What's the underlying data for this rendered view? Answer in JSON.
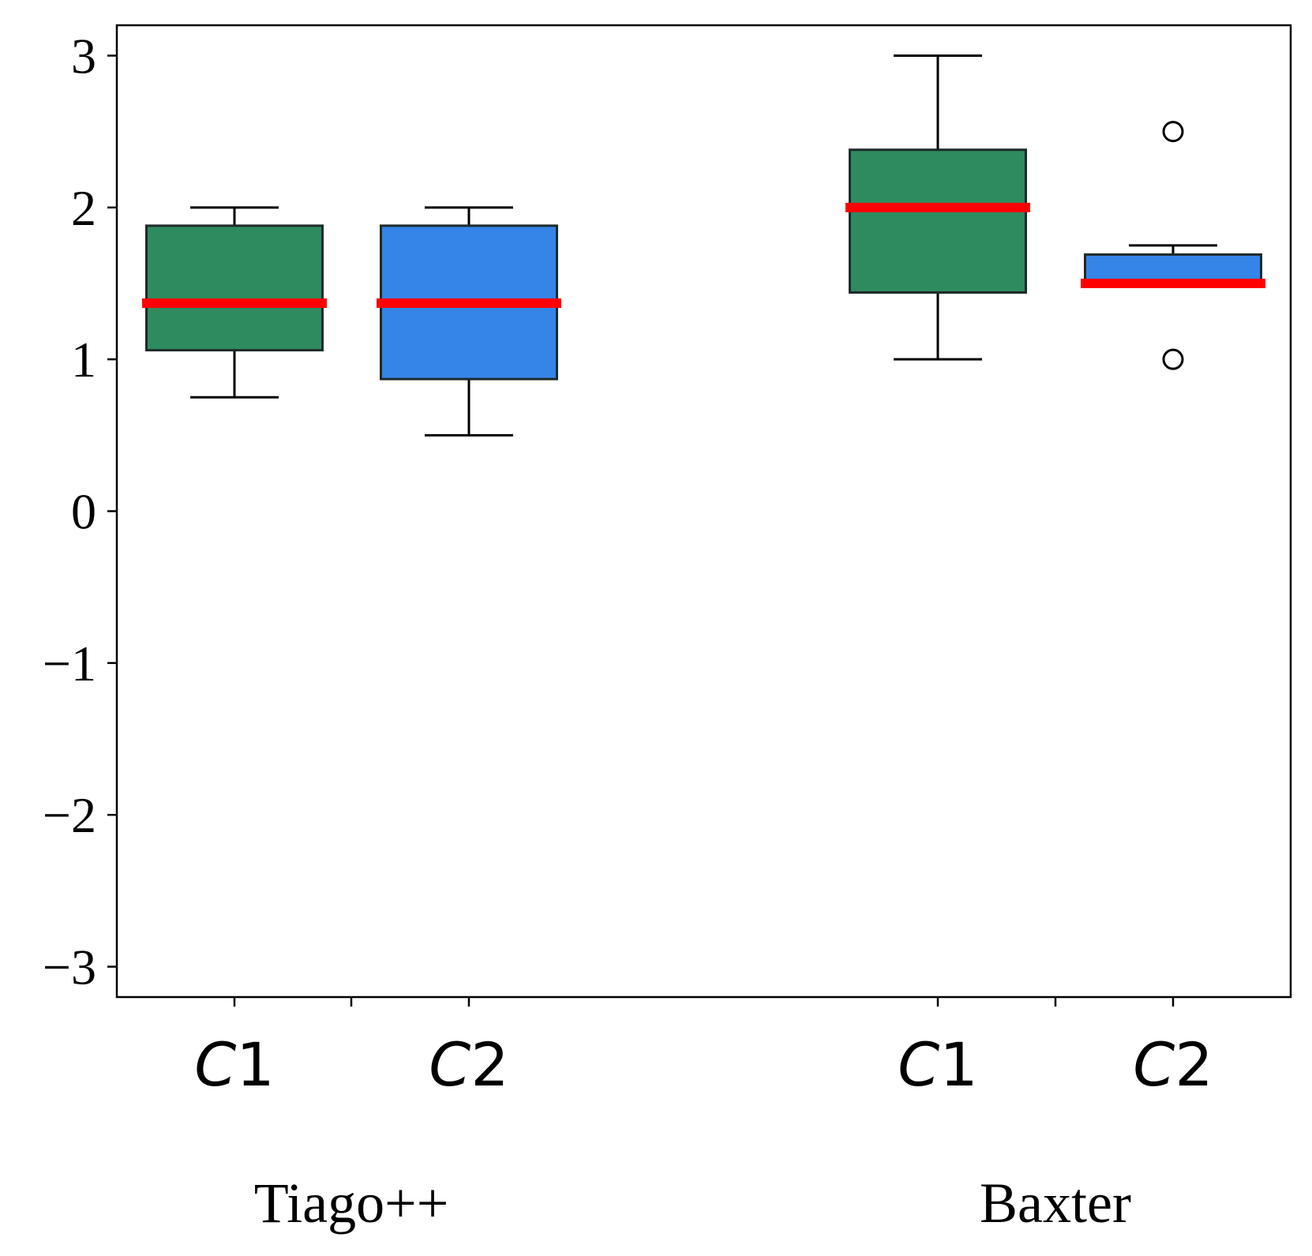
{
  "chart_data": {
    "type": "box",
    "title": "",
    "xlabel": "",
    "ylabel": "",
    "ylim": [
      -3.2,
      3.2
    ],
    "yticks": [
      -3,
      -2,
      -1,
      0,
      1,
      2,
      3
    ],
    "ytick_labels": [
      "−3",
      "−2",
      "−1",
      "0",
      "1",
      "2",
      "3"
    ],
    "grid": false,
    "legend": null,
    "colors": {
      "C1": "#2e8b5f",
      "C2": "#3584e8",
      "median": "#ff0000"
    },
    "groups": [
      {
        "name": "Tiago++",
        "boxes": [
          {
            "category": "C1",
            "letter": "C",
            "number": "1",
            "whisker_low": 0.75,
            "q1": 1.06,
            "median": 1.37,
            "q3": 1.88,
            "whisker_high": 2.0,
            "outliers": []
          },
          {
            "category": "C2",
            "letter": "C",
            "number": "2",
            "whisker_low": 0.5,
            "q1": 0.87,
            "median": 1.37,
            "q3": 1.88,
            "whisker_high": 2.0,
            "outliers": []
          }
        ]
      },
      {
        "name": "Baxter",
        "boxes": [
          {
            "category": "C1",
            "letter": "C",
            "number": "1",
            "whisker_low": 1.0,
            "q1": 1.44,
            "median": 2.0,
            "q3": 2.38,
            "whisker_high": 3.0,
            "outliers": []
          },
          {
            "category": "C2",
            "letter": "C",
            "number": "2",
            "whisker_low": 1.5,
            "q1": 1.5,
            "median": 1.5,
            "q3": 1.69,
            "whisker_high": 1.75,
            "outliers": [
              1.0,
              2.5
            ]
          }
        ]
      }
    ]
  }
}
